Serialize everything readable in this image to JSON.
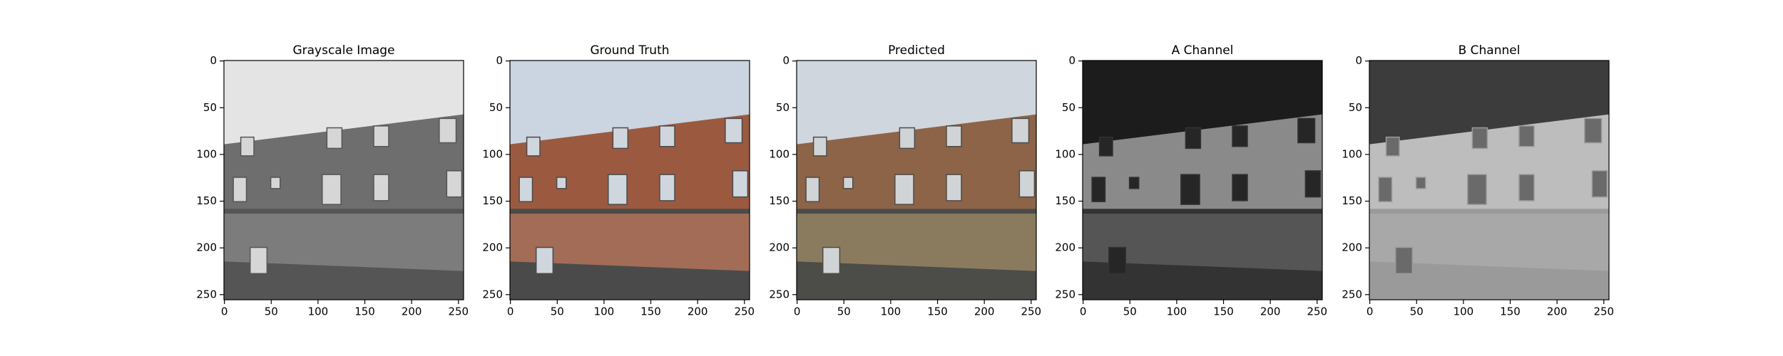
{
  "chart_data": [
    {
      "type": "image",
      "title": "Grayscale Image",
      "xlim": [
        -0.5,
        255.5
      ],
      "ylim": [
        255.5,
        -0.5
      ],
      "xticks": [
        0,
        50,
        100,
        150,
        200,
        250
      ],
      "yticks": [
        0,
        50,
        100,
        150,
        200,
        250
      ]
    },
    {
      "type": "image",
      "title": "Ground Truth",
      "xlim": [
        -0.5,
        255.5
      ],
      "ylim": [
        255.5,
        -0.5
      ],
      "xticks": [
        0,
        50,
        100,
        150,
        200,
        250
      ],
      "yticks": [
        0,
        50,
        100,
        150,
        200,
        250
      ]
    },
    {
      "type": "image",
      "title": "Predicted",
      "xlim": [
        -0.5,
        255.5
      ],
      "ylim": [
        255.5,
        -0.5
      ],
      "xticks": [
        0,
        50,
        100,
        150,
        200,
        250
      ],
      "yticks": [
        0,
        50,
        100,
        150,
        200,
        250
      ]
    },
    {
      "type": "image",
      "title": "A Channel",
      "xlim": [
        -0.5,
        255.5
      ],
      "ylim": [
        255.5,
        -0.5
      ],
      "xticks": [
        0,
        50,
        100,
        150,
        200,
        250
      ],
      "yticks": [
        0,
        50,
        100,
        150,
        200,
        250
      ]
    },
    {
      "type": "image",
      "title": "B Channel",
      "xlim": [
        -0.5,
        255.5
      ],
      "ylim": [
        255.5,
        -0.5
      ],
      "xticks": [
        0,
        50,
        100,
        150,
        200,
        250
      ],
      "yticks": [
        0,
        50,
        100,
        150,
        200,
        250
      ]
    }
  ]
}
